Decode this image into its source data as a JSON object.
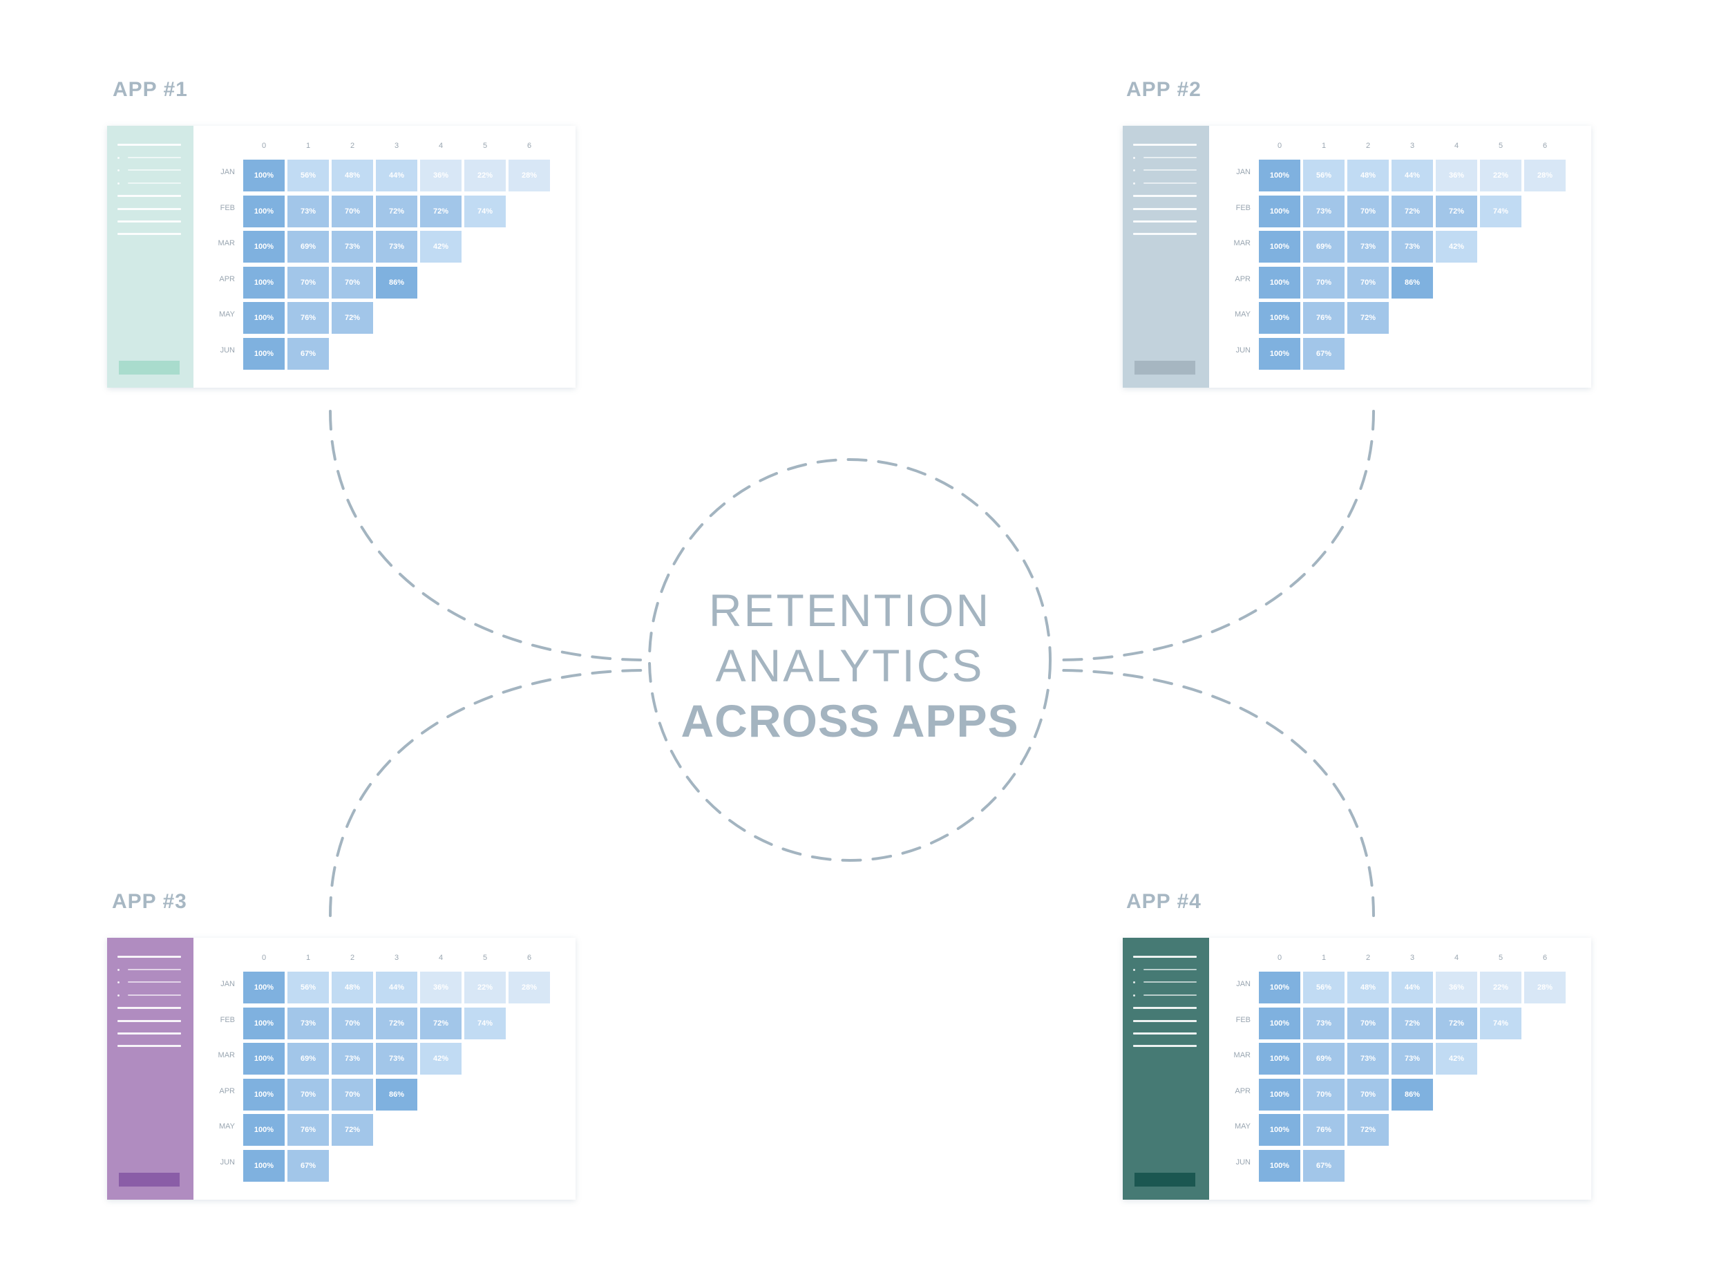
{
  "center": {
    "line1": "RETENTION",
    "line2": "ANALYTICS",
    "line3": "ACROSS APPS"
  },
  "columns": [
    "0",
    "1",
    "2",
    "3",
    "4",
    "5",
    "6"
  ],
  "rows": [
    {
      "month": "JAN",
      "values": [
        "100%",
        "56%",
        "48%",
        "44%",
        "36%",
        "22%",
        "28%"
      ]
    },
    {
      "month": "FEB",
      "values": [
        "100%",
        "73%",
        "70%",
        "72%",
        "72%",
        "74%"
      ]
    },
    {
      "month": "MAR",
      "values": [
        "100%",
        "69%",
        "73%",
        "73%",
        "42%"
      ]
    },
    {
      "month": "APR",
      "values": [
        "100%",
        "70%",
        "70%",
        "86%"
      ]
    },
    {
      "month": "MAY",
      "values": [
        "100%",
        "76%",
        "72%"
      ]
    },
    {
      "month": "JUN",
      "values": [
        "100%",
        "67%"
      ]
    }
  ],
  "apps": [
    {
      "title": "APP #1",
      "sidebar_color": "#d2eae6",
      "button_color": "#a9dccd"
    },
    {
      "title": "APP #2",
      "sidebar_color": "#c2d2dc",
      "button_color": "#a6b6c1"
    },
    {
      "title": "APP #3",
      "sidebar_color": "#b08cc0",
      "button_color": "#8a5da7"
    },
    {
      "title": "APP #4",
      "sidebar_color": "#467a74",
      "button_color": "#1b5751"
    }
  ],
  "colors": {
    "connector": "#a3b4c0",
    "cell_dark": "#7fb1df",
    "cell_mid": "#a2c6e9",
    "cell_light": "#c1dbf3",
    "cell_pale": "#d8e7f6"
  }
}
